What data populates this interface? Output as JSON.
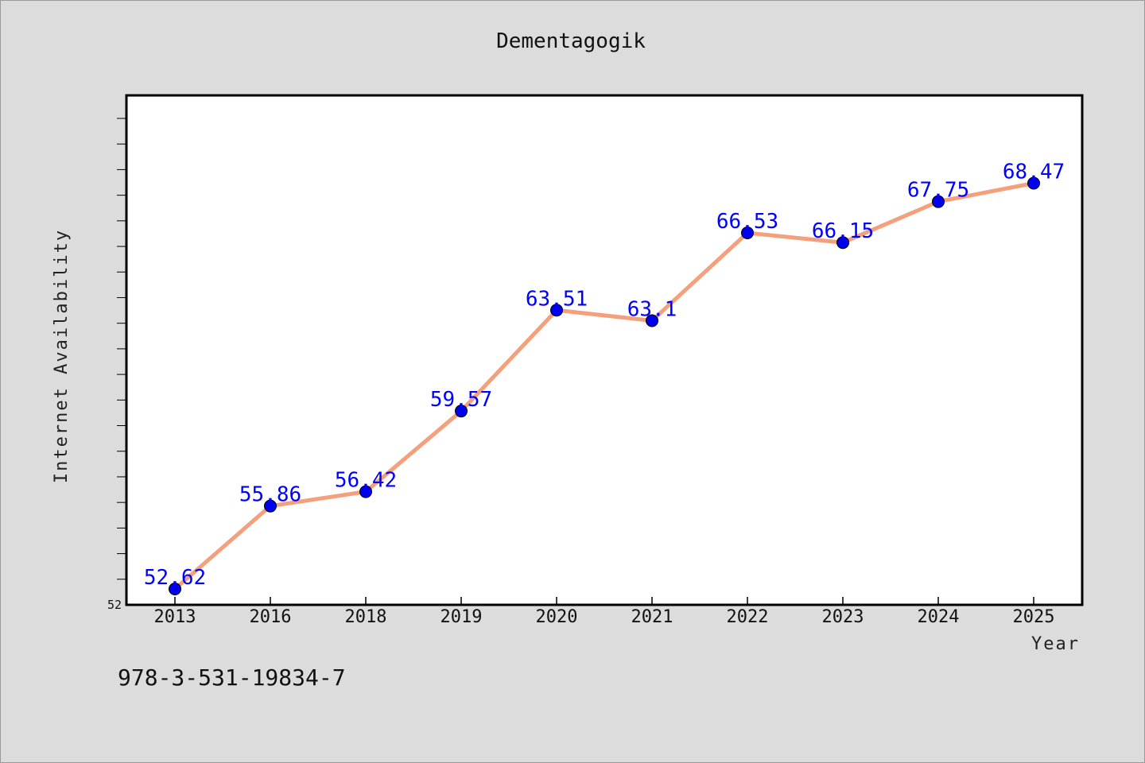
{
  "chart_data": {
    "type": "line",
    "title": "Dementagogik",
    "xlabel": "Year",
    "ylabel": "Internet Availability",
    "categories": [
      "2013",
      "2016",
      "2018",
      "2019",
      "2020",
      "2021",
      "2022",
      "2023",
      "2024",
      "2025"
    ],
    "series": [
      {
        "values": [
          52.62,
          55.86,
          56.42,
          59.57,
          63.51,
          63.1,
          66.53,
          66.15,
          67.75,
          68.47
        ],
        "labels": [
          "52.62",
          "55.86",
          "56.42",
          "59.57",
          "63.51",
          "63.1",
          "66.53",
          "66.15",
          "67.75",
          "68.47"
        ],
        "line_color": "#f4a07c",
        "marker_color": "#0000ee",
        "label_color": "#0000ff"
      }
    ],
    "ylim": [
      52,
      71.9
    ],
    "yticks_labeled": [
      "52"
    ],
    "minor_tick_step": 1,
    "grid": false,
    "legend": "none"
  },
  "footer": {
    "isbn": "978-3-531-19834-7"
  }
}
